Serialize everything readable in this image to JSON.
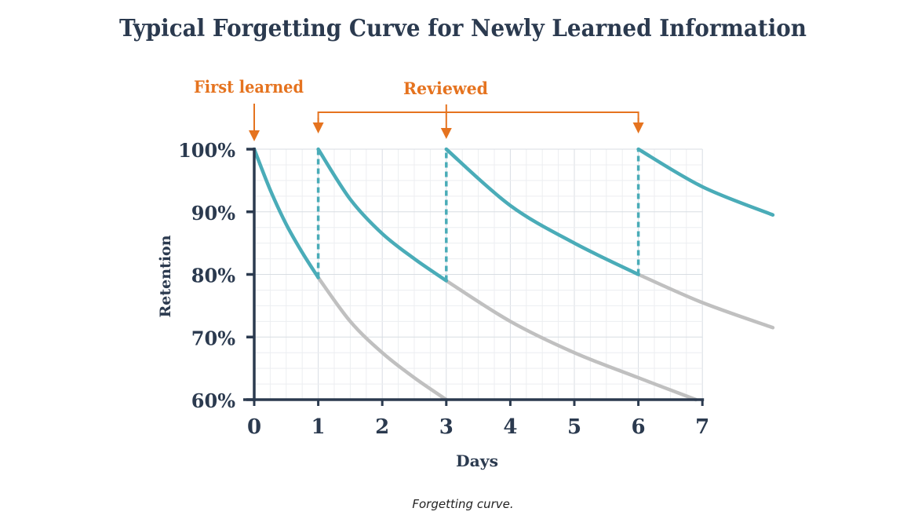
{
  "chart_data": {
    "type": "line",
    "title": "Typical Forgetting Curve for Newly Learned Information",
    "xlabel": "Days",
    "ylabel": "Retention",
    "xlim": [
      0,
      8.1
    ],
    "ylim": [
      60,
      100
    ],
    "x_ticks": [
      "0",
      "1",
      "2",
      "3",
      "4",
      "5",
      "6",
      "7"
    ],
    "y_ticks": [
      "100%",
      "90%",
      "80%",
      "70%",
      "60%"
    ],
    "grid": true,
    "annotations": {
      "first_learned": {
        "label": "First learned",
        "day": 0
      },
      "reviewed": {
        "label": "Reviewed",
        "days": [
          1,
          3,
          6
        ]
      }
    },
    "colors": {
      "retained": "#4aacb8",
      "forgotten": "#c0c0c0",
      "annotation": "#e5731f",
      "text": "#2b3a4f"
    },
    "series": [
      {
        "role": "retained",
        "x": [
          0,
          0.25,
          0.5,
          0.75,
          1
        ],
        "y": [
          100,
          93.5,
          88,
          83.5,
          79.5
        ]
      },
      {
        "role": "forgotten",
        "x": [
          1,
          1.5,
          2,
          2.5,
          3
        ],
        "y": [
          79.5,
          72.5,
          67.5,
          63.5,
          60
        ]
      },
      {
        "role": "retained",
        "x": [
          1,
          1.5,
          2,
          2.5,
          3
        ],
        "y": [
          100,
          92,
          86.5,
          82.5,
          79
        ]
      },
      {
        "role": "forgotten",
        "x": [
          3,
          4,
          5,
          6,
          6.9
        ],
        "y": [
          79,
          72.5,
          67.5,
          63.5,
          60
        ]
      },
      {
        "role": "retained",
        "x": [
          3,
          4,
          5,
          6
        ],
        "y": [
          100,
          91,
          85,
          80
        ]
      },
      {
        "role": "forgotten",
        "x": [
          6,
          7,
          8.1
        ],
        "y": [
          80,
          75.5,
          71.5
        ]
      },
      {
        "role": "retained",
        "x": [
          6,
          7,
          8.1
        ],
        "y": [
          100,
          94,
          89.5
        ]
      }
    ],
    "review_jumps": [
      {
        "day": 1,
        "from": 79.5,
        "to": 100
      },
      {
        "day": 3,
        "from": 79,
        "to": 100
      },
      {
        "day": 6,
        "from": 80,
        "to": 100
      }
    ]
  },
  "caption": "Forgetting curve."
}
